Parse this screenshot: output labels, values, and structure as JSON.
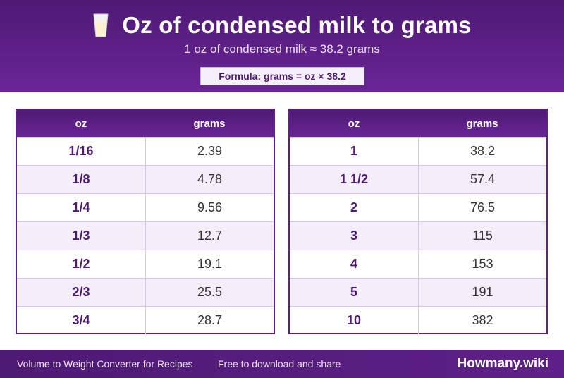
{
  "header": {
    "icon": "milk-glass-icon",
    "title": "Oz of condensed milk to grams",
    "subtitle": "1 oz of condensed milk ≈ 38.2 grams",
    "formula": "Formula: grams = oz × 38.2"
  },
  "tables": [
    {
      "headers": {
        "oz": "oz",
        "grams": "grams"
      },
      "rows": [
        {
          "oz": "1/16",
          "grams": "2.39"
        },
        {
          "oz": "1/8",
          "grams": "4.78"
        },
        {
          "oz": "1/4",
          "grams": "9.56"
        },
        {
          "oz": "1/3",
          "grams": "12.7"
        },
        {
          "oz": "1/2",
          "grams": "19.1"
        },
        {
          "oz": "2/3",
          "grams": "25.5"
        },
        {
          "oz": "3/4",
          "grams": "28.7"
        }
      ]
    },
    {
      "headers": {
        "oz": "oz",
        "grams": "grams"
      },
      "rows": [
        {
          "oz": "1",
          "grams": "38.2"
        },
        {
          "oz": "1 1/2",
          "grams": "57.4"
        },
        {
          "oz": "2",
          "grams": "76.5"
        },
        {
          "oz": "3",
          "grams": "115"
        },
        {
          "oz": "4",
          "grams": "153"
        },
        {
          "oz": "5",
          "grams": "191"
        },
        {
          "oz": "10",
          "grams": "382"
        }
      ]
    }
  ],
  "footer": {
    "left_text": "Volume to Weight Converter for Recipes",
    "middle_text": "Free to download and share",
    "brand": "Howmany.wiki"
  },
  "colors": {
    "primary": "#5e2088",
    "primary_dark": "#4d1a73",
    "row_alt": "#f3eef9"
  }
}
